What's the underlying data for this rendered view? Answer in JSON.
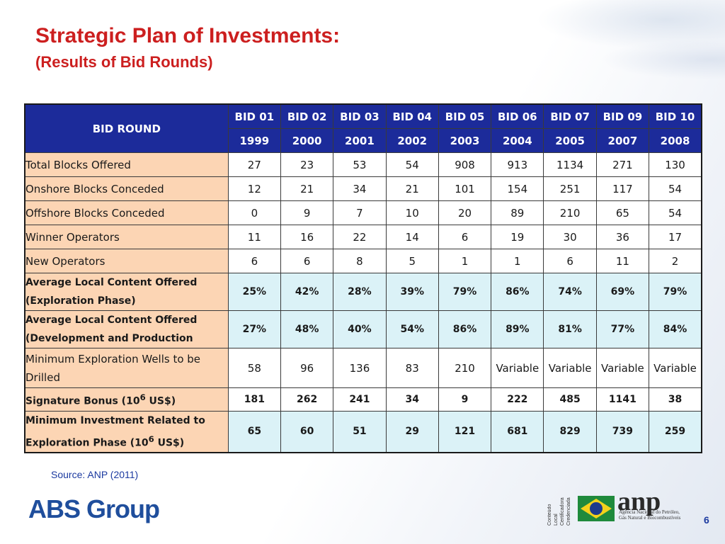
{
  "slide": {
    "title": "Strategic Plan of Investments:",
    "subtitle": "(Results of Bid Rounds)",
    "source": "Source: ANP (2011)",
    "page_number": "6",
    "colors": {
      "title_red": "#cc1f1f",
      "header_blue": "#1c2b9a",
      "label_peach": "#fcd5b4",
      "highlight_cyan": "#dbf2f7",
      "accent_blue": "#1c3aa0"
    }
  },
  "table": {
    "corner_label": "BID ROUND",
    "rounds": [
      "BID 01",
      "BID 02",
      "BID 03",
      "BID 04",
      "BID 05",
      "BID 06",
      "BID 07",
      "BID 09",
      "BID 10"
    ],
    "years": [
      "1999",
      "2000",
      "2001",
      "2002",
      "2003",
      "2004",
      "2005",
      "2007",
      "2008"
    ],
    "rows": [
      {
        "label": "Total Blocks Offered",
        "values": [
          "27",
          "23",
          "53",
          "54",
          "908",
          "913",
          "1134",
          "271",
          "130"
        ]
      },
      {
        "label": "Onshore Blocks Conceded",
        "values": [
          "12",
          "21",
          "34",
          "21",
          "101",
          "154",
          "251",
          "117",
          "54"
        ]
      },
      {
        "label": "Offshore Blocks Conceded",
        "values": [
          "0",
          "9",
          "7",
          "10",
          "20",
          "89",
          "210",
          "65",
          "54"
        ]
      },
      {
        "label": "Winner Operators",
        "values": [
          "11",
          "16",
          "22",
          "14",
          "6",
          "19",
          "30",
          "36",
          "17"
        ]
      },
      {
        "label": "New Operators",
        "values": [
          "6",
          "6",
          "8",
          "5",
          "1",
          "1",
          "6",
          "11",
          "2"
        ]
      },
      {
        "label_line1": "Average Local Content Offered",
        "label_line2": "(Exploration Phase)",
        "values": [
          "25%",
          "42%",
          "28%",
          "39%",
          "79%",
          "86%",
          "74%",
          "69%",
          "79%"
        ]
      },
      {
        "label_line1": "Average Local Content Offered",
        "label_line2": "(Development and Production",
        "values": [
          "27%",
          "48%",
          "40%",
          "54%",
          "86%",
          "89%",
          "81%",
          "77%",
          "84%"
        ]
      },
      {
        "label_line1": "Minimum Exploration Wells to be",
        "label_line2": "Drilled",
        "values": [
          "58",
          "96",
          "136",
          "83",
          "210",
          "Variable",
          "Variable",
          "Variable",
          "Variable"
        ]
      },
      {
        "label_pre": "Signature Bonus (10",
        "label_sup": "6",
        "label_post": " US$)",
        "values": [
          "181",
          "262",
          "241",
          "34",
          "9",
          "222",
          "485",
          "1141",
          "38"
        ]
      },
      {
        "label_line1": "Minimum Investment Related to",
        "label_pre": "Exploration Phase (10",
        "label_sup": "6",
        "label_post": " US$)",
        "values": [
          "65",
          "60",
          "51",
          "29",
          "121",
          "681",
          "829",
          "739",
          "259"
        ]
      }
    ]
  },
  "footer": {
    "company_logo": "ABS Group",
    "cert_lines": [
      "Conteúdo Local",
      "Certificadora",
      "Credenciada"
    ],
    "anp_word": "anp",
    "anp_desc": "Agência Nacional do Petróleo, Gás Natural e Biocombustíveis"
  }
}
